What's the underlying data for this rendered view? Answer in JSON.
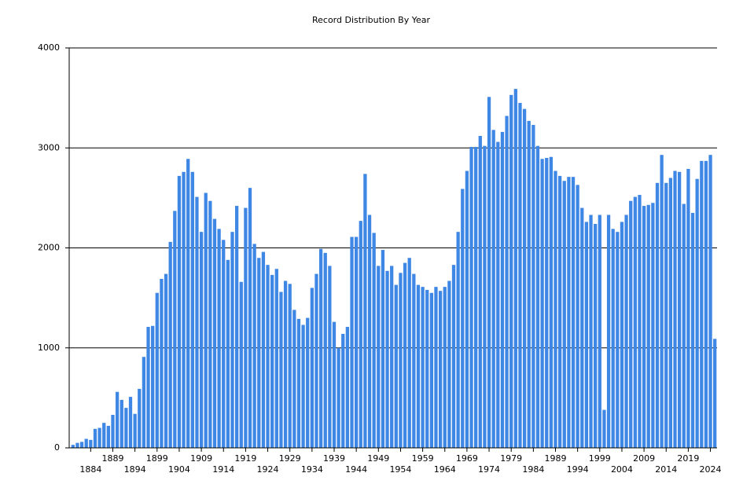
{
  "chart_data": {
    "type": "bar",
    "title": "Record Distribution By Year",
    "categories": [
      null,
      null,
      null,
      null,
      "1884",
      null,
      null,
      null,
      null,
      "1889",
      null,
      null,
      null,
      null,
      "1894",
      null,
      null,
      null,
      null,
      "1899",
      null,
      null,
      null,
      null,
      "1904",
      null,
      null,
      null,
      null,
      "1909",
      null,
      null,
      null,
      null,
      "1914",
      null,
      null,
      null,
      null,
      "1919",
      null,
      null,
      null,
      null,
      "1924",
      null,
      null,
      null,
      null,
      "1929",
      null,
      null,
      null,
      null,
      "1934",
      null,
      null,
      null,
      null,
      "1939",
      null,
      null,
      null,
      null,
      "1944",
      null,
      null,
      null,
      null,
      "1949",
      null,
      null,
      null,
      null,
      "1954",
      null,
      null,
      null,
      null,
      "1959",
      null,
      null,
      null,
      null,
      "1964",
      null,
      null,
      null,
      null,
      "1969",
      null,
      null,
      null,
      null,
      "1974",
      null,
      null,
      null,
      null,
      "1979",
      null,
      null,
      null,
      null,
      "1984",
      null,
      null,
      null,
      null,
      "1989",
      null,
      null,
      null,
      null,
      "1994",
      null,
      null,
      null,
      null,
      "1999",
      null,
      null,
      null,
      null,
      "2004",
      null,
      null,
      null,
      null,
      "2009",
      null,
      null,
      null,
      null,
      "2014",
      null,
      null,
      null,
      null,
      "2019",
      null,
      null,
      null,
      null,
      "2024",
      null
    ],
    "values": [
      30,
      50,
      60,
      90,
      80,
      190,
      200,
      250,
      220,
      330,
      560,
      480,
      400,
      510,
      340,
      590,
      910,
      1210,
      1220,
      1550,
      1690,
      1740,
      2060,
      2370,
      2720,
      2760,
      2890,
      2760,
      2510,
      2160,
      2550,
      2470,
      2290,
      2190,
      2080,
      1880,
      2160,
      2420,
      1660,
      2400,
      2600,
      2040,
      1900,
      1960,
      1830,
      1730,
      1790,
      1560,
      1670,
      1640,
      1380,
      1290,
      1230,
      1300,
      1600,
      1740,
      1990,
      1950,
      1820,
      1260,
      1000,
      1140,
      1210,
      2110,
      2110,
      2270,
      2740,
      2330,
      2150,
      1820,
      1980,
      1770,
      1820,
      1630,
      1750,
      1850,
      1900,
      1740,
      1630,
      1610,
      1580,
      1550,
      1610,
      1570,
      1610,
      1670,
      1830,
      2160,
      2590,
      2770,
      3010,
      3010,
      3120,
      3020,
      3510,
      3180,
      3060,
      3160,
      3320,
      3530,
      3590,
      3450,
      3390,
      3270,
      3230,
      3020,
      2890,
      2900,
      2910,
      2770,
      2720,
      2670,
      2710,
      2710,
      2630,
      2400,
      2260,
      2330,
      2240,
      2330,
      380,
      2330,
      2190,
      2160,
      2260,
      2330,
      2470,
      2510,
      2530,
      2420,
      2430,
      2450,
      2650,
      2930,
      2650,
      2700,
      2770,
      2760,
      2440,
      2790,
      2350,
      2690,
      2870,
      2870,
      2930,
      1090
    ],
    "color": "#3f87e5",
    "ylim": [
      0,
      4000
    ],
    "yticks": [
      0,
      1000,
      2000,
      3000,
      4000
    ],
    "grid": true
  }
}
